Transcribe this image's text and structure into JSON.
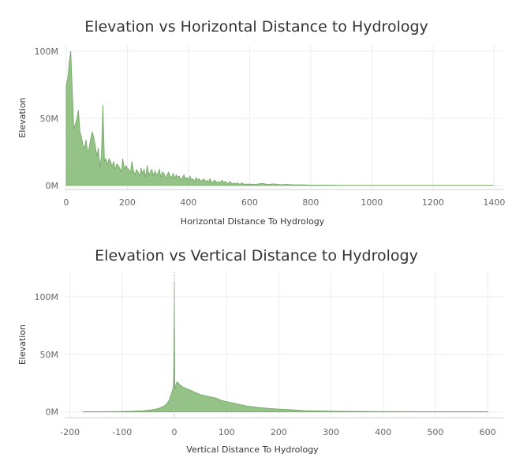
{
  "chart_data": [
    {
      "type": "area",
      "title": "Elevation vs Horizontal Distance to Hydrology",
      "xlabel": "Horizontal Distance To Hydrology",
      "ylabel": "Elevation",
      "xlim": [
        -5,
        1430
      ],
      "ylim": [
        -3,
        104
      ],
      "x_ticks": [
        0,
        200,
        400,
        600,
        800,
        1000,
        1200,
        1400
      ],
      "y_ticks": [
        0,
        50,
        100
      ],
      "y_tick_labels": [
        "0M",
        "50M",
        "100M"
      ],
      "grid": true,
      "color": "#8fbf7f",
      "series": [
        {
          "x": [
            0,
            5,
            10,
            15,
            20,
            25,
            30,
            35,
            40,
            45,
            50,
            55,
            60,
            65,
            70,
            75,
            80,
            85,
            90,
            95,
            100,
            105,
            110,
            115,
            120,
            125,
            130,
            135,
            140,
            145,
            150,
            155,
            160,
            165,
            170,
            175,
            180,
            185,
            190,
            195,
            200,
            205,
            210,
            215,
            220,
            225,
            230,
            235,
            240,
            245,
            250,
            255,
            260,
            265,
            270,
            275,
            280,
            285,
            290,
            295,
            300,
            305,
            310,
            315,
            320,
            325,
            330,
            335,
            340,
            345,
            350,
            355,
            360,
            365,
            370,
            375,
            380,
            385,
            390,
            395,
            400,
            405,
            410,
            415,
            420,
            425,
            430,
            435,
            440,
            445,
            450,
            455,
            460,
            465,
            470,
            475,
            480,
            485,
            490,
            495,
            500,
            505,
            510,
            515,
            520,
            525,
            530,
            535,
            540,
            545,
            550,
            555,
            560,
            565,
            570,
            575,
            580,
            585,
            590,
            595,
            600,
            620,
            640,
            660,
            680,
            700,
            720,
            740,
            760,
            780,
            800,
            850,
            900,
            950,
            1000,
            1050,
            1100,
            1200,
            1300,
            1397
          ],
          "values": [
            74,
            80,
            92,
            100,
            70,
            42,
            46,
            50,
            56,
            40,
            36,
            30,
            28,
            34,
            24,
            28,
            35,
            40,
            36,
            30,
            22,
            28,
            14,
            22,
            60,
            18,
            20,
            15,
            20,
            18,
            14,
            18,
            12,
            16,
            15,
            13,
            10,
            20,
            12,
            15,
            13,
            12,
            9,
            18,
            11,
            8,
            12,
            10,
            7,
            13,
            9,
            12,
            6,
            15,
            8,
            10,
            12,
            7,
            11,
            8,
            9,
            12,
            6,
            10,
            9,
            5,
            8,
            10,
            7,
            6,
            9,
            5,
            8,
            6,
            7,
            4,
            6,
            8,
            5,
            6,
            4,
            7,
            4,
            5,
            3,
            6,
            4,
            5,
            3,
            4,
            5,
            3,
            4,
            2,
            5,
            3,
            2,
            4,
            3,
            2,
            3,
            2,
            4,
            2,
            3,
            2,
            1,
            3,
            2,
            1,
            2,
            1,
            2,
            1,
            1,
            2,
            1,
            1,
            1,
            1,
            1,
            0.8,
            1.5,
            0.8,
            1.2,
            0.6,
            0.8,
            0.5,
            0.5,
            0.4,
            0.3,
            0.3,
            0.2,
            0.2,
            0.15,
            0.1,
            0.1,
            0.1,
            0.1,
            0.1
          ]
        }
      ]
    },
    {
      "type": "area",
      "title": "Elevation vs Vertical Distance to Hydrology",
      "xlabel": "Vertical Distance To Hydrology",
      "ylabel": "Elevation",
      "xlim": [
        -210,
        630
      ],
      "ylim": [
        -5,
        122
      ],
      "x_ticks": [
        -200,
        -100,
        0,
        100,
        200,
        300,
        400,
        500,
        600
      ],
      "y_ticks": [
        0,
        50,
        100
      ],
      "y_tick_labels": [
        "0M",
        "50M",
        "100M"
      ],
      "grid": true,
      "color": "#8fbf7f",
      "series": [
        {
          "x": [
            -175,
            -150,
            -120,
            -100,
            -80,
            -60,
            -40,
            -30,
            -20,
            -15,
            -10,
            -8,
            -5,
            -3,
            -2,
            -1,
            0,
            1,
            2,
            3,
            5,
            8,
            10,
            15,
            20,
            25,
            30,
            40,
            50,
            60,
            70,
            80,
            90,
            100,
            120,
            140,
            160,
            180,
            200,
            220,
            250,
            300,
            400,
            500,
            600
          ],
          "values": [
            0.2,
            0.2,
            0.3,
            0.4,
            0.6,
            1,
            2,
            3,
            5,
            7,
            10,
            13,
            17,
            20,
            22,
            40,
            114,
            22,
            20,
            24,
            26,
            25,
            24,
            22,
            21,
            20,
            19,
            17,
            15,
            14,
            13,
            12,
            10,
            9,
            7,
            5,
            4,
            3,
            2.5,
            2,
            1.2,
            0.6,
            0.3,
            0.2,
            0.2
          ]
        }
      ]
    }
  ]
}
